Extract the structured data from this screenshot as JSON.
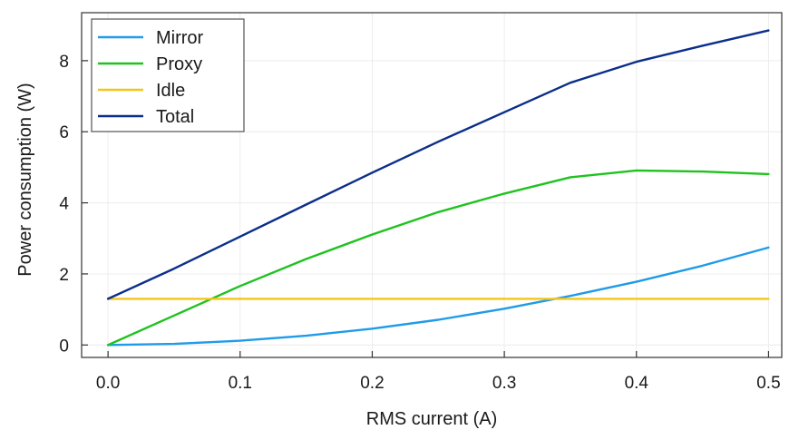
{
  "chart_data": {
    "type": "line",
    "title": "",
    "xlabel": "RMS current (A)",
    "ylabel": "Power consumption (W)",
    "xlim": [
      -0.02,
      0.51
    ],
    "ylim": [
      -0.35,
      9.35
    ],
    "xticks": [
      0.0,
      0.1,
      0.2,
      0.3,
      0.4,
      0.5
    ],
    "xtick_labels": [
      "0.0",
      "0.1",
      "0.2",
      "0.3",
      "0.4",
      "0.5"
    ],
    "yticks": [
      0,
      2,
      4,
      6,
      8
    ],
    "ytick_labels": [
      "0",
      "2",
      "4",
      "6",
      "8"
    ],
    "grid": true,
    "legend_position": "top-left",
    "series": [
      {
        "name": "Mirror",
        "color": "#1f9be8",
        "x": [
          0.0,
          0.05,
          0.1,
          0.15,
          0.2,
          0.25,
          0.3,
          0.35,
          0.4,
          0.45,
          0.5
        ],
        "y": [
          0.0,
          0.03,
          0.12,
          0.26,
          0.46,
          0.71,
          1.02,
          1.38,
          1.78,
          2.23,
          2.74
        ]
      },
      {
        "name": "Proxy",
        "color": "#1fc21f",
        "x": [
          0.0,
          0.05,
          0.1,
          0.15,
          0.2,
          0.25,
          0.3,
          0.35,
          0.4,
          0.45,
          0.5
        ],
        "y": [
          0.0,
          0.83,
          1.66,
          2.42,
          3.11,
          3.74,
          4.26,
          4.72,
          4.91,
          4.88,
          4.81
        ]
      },
      {
        "name": "Idle",
        "color": "#f5c518",
        "x": [
          0.0,
          0.5
        ],
        "y": [
          1.3,
          1.3
        ]
      },
      {
        "name": "Total",
        "color": "#0b2e8a",
        "x": [
          0.0,
          0.05,
          0.1,
          0.15,
          0.2,
          0.25,
          0.3,
          0.35,
          0.4,
          0.45,
          0.5
        ],
        "y": [
          1.3,
          2.15,
          3.05,
          3.95,
          4.85,
          5.72,
          6.55,
          7.38,
          7.97,
          8.42,
          8.85
        ]
      }
    ]
  }
}
